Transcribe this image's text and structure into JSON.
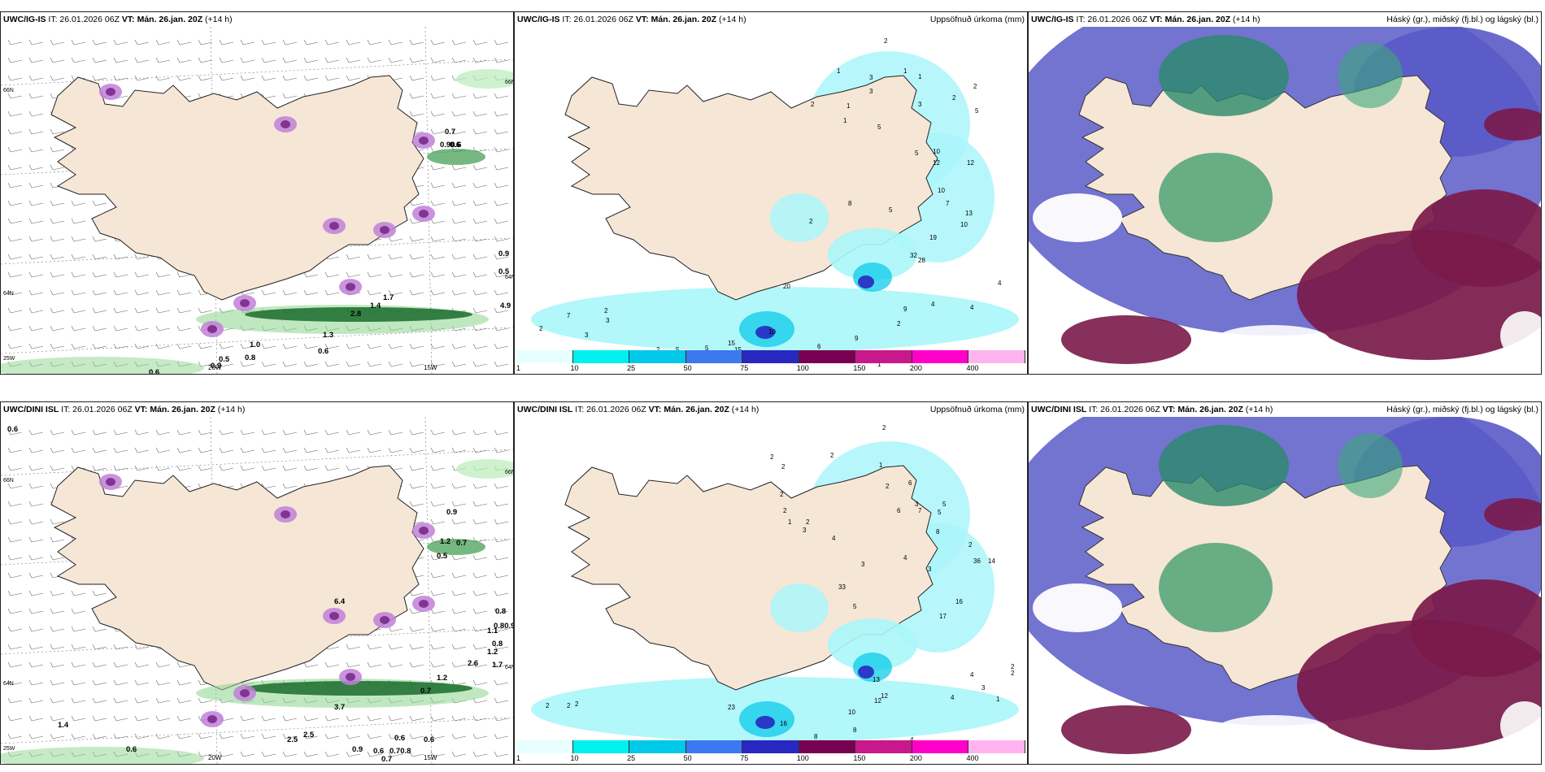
{
  "rows": [
    {
      "model": "UWC/IG-IS",
      "it_label": "IT: 26.01.2026 06Z",
      "vt_label": "VT: Mán. 26.jan. 20Z",
      "lead": "(+14 h)",
      "left_values": [
        "0.7",
        "0.90.6",
        "0.6",
        "0.9",
        "0.5",
        "4.9",
        "1.7",
        "1.4",
        "2.8",
        "1.3",
        "0.6",
        "0.6",
        "0.9",
        "0.5",
        "0.8",
        "1.0"
      ],
      "left_lon_ticks": [
        "20W",
        "15W"
      ],
      "left_lat_ticks": [
        "66N",
        "64N",
        "25W",
        "66N",
        "64N"
      ],
      "mid_values": [
        "2",
        "1",
        "3",
        "3",
        "1",
        "1",
        "2",
        "1",
        "1",
        "3",
        "2",
        "5",
        "5",
        "10",
        "12",
        "2",
        "5",
        "8",
        "2",
        "5",
        "10",
        "12",
        "7",
        "10",
        "13",
        "19",
        "32",
        "28",
        "20",
        "4",
        "4",
        "4",
        "1",
        "2",
        "9",
        "9",
        "6",
        "10",
        "15",
        "15",
        "8",
        "5",
        "5",
        "2",
        "2",
        "2",
        "7",
        "3",
        "2",
        "3"
      ],
      "right_title": "Háský (gr.), miðský (fj.bl.) og lágský (bl.)"
    },
    {
      "model": "UWC/DINI ISL",
      "it_label": "IT: 26.01.2026 06Z",
      "vt_label": "VT: Mán. 26.jan. 20Z",
      "lead": "(+14 h)",
      "left_values": [
        "0.6",
        "0.8",
        "1.1",
        "1.2",
        "1.7",
        "0.9",
        "1.2",
        "0.5",
        "0.7",
        "0.80.9",
        "0.8",
        "2.6",
        "1.2",
        "0.7",
        "3.7",
        "2.5",
        "2.5",
        "1.4",
        "0.6",
        "0.6",
        "0.70.8",
        "0.9",
        "0.7",
        "0.6",
        "0.6",
        "6.4"
      ],
      "left_lon_ticks": [
        "20W",
        "15W"
      ],
      "left_lat_ticks": [
        "66N",
        "64N",
        "25W",
        "66N",
        "64N"
      ],
      "mid_values": [
        "2",
        "2",
        "1",
        "2",
        "3",
        "2",
        "2",
        "2",
        "2",
        "1",
        "2",
        "3",
        "4",
        "6",
        "6",
        "7",
        "8",
        "3",
        "4",
        "5",
        "5",
        "3",
        "2",
        "17",
        "16",
        "14",
        "36",
        "33",
        "5",
        "13",
        "12",
        "12",
        "10",
        "8",
        "15",
        "16",
        "8",
        "4",
        "4",
        "3",
        "4",
        "1",
        "2",
        "2",
        "23",
        "2",
        "2",
        "2"
      ],
      "right_title": "Háský (gr.), miðský (fj.bl.) og lágský (bl.)"
    }
  ],
  "precip_title": "Uppsöfnuð úrkoma (mm)",
  "colorbar": {
    "labels": [
      "1",
      "10",
      "25",
      "50",
      "75",
      "100",
      "150",
      "200",
      "400"
    ],
    "colors": [
      "#e8ffff",
      "#00f0f0",
      "#00c8e8",
      "#3c78f0",
      "#2828c0",
      "#780050",
      "#c8188c",
      "#ff00c8",
      "#ffb4f0"
    ]
  }
}
